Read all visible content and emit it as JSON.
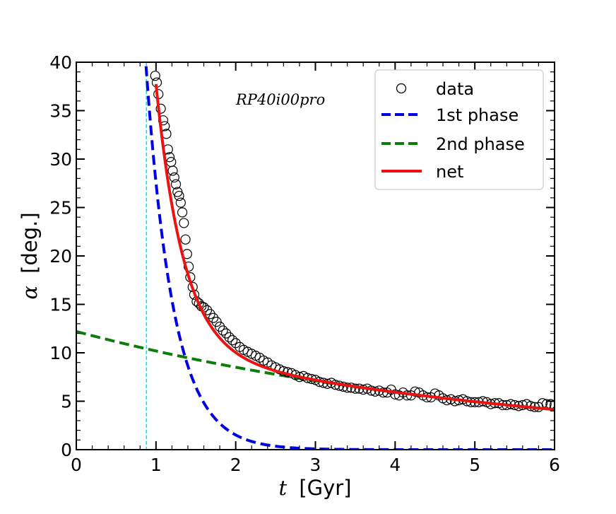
{
  "chart_data": {
    "type": "line",
    "annotation": "RP40i00pro",
    "xlabel": {
      "symbol": "t",
      "text": "[Gyr]"
    },
    "ylabel": {
      "symbol": "α",
      "text": "[deg.]"
    },
    "xlim": [
      0,
      6
    ],
    "ylim": [
      0,
      40
    ],
    "xticks": [
      0,
      1,
      2,
      3,
      4,
      5,
      6
    ],
    "yticks": [
      0,
      5,
      10,
      15,
      20,
      25,
      30,
      35,
      40
    ],
    "grid": false,
    "legend_position": "top-right",
    "vertical_line": {
      "x": 0.88,
      "color": "#00e5ee",
      "style": "dashed"
    },
    "series": [
      {
        "name": "data",
        "style": "open-circle",
        "color": "#000000",
        "points": [
          [
            0.99,
            38.6
          ],
          [
            1.01,
            37.9
          ],
          [
            1.03,
            36.7
          ],
          [
            1.06,
            35.2
          ],
          [
            1.09,
            34.0
          ],
          [
            1.11,
            33.4
          ],
          [
            1.13,
            32.6
          ],
          [
            1.15,
            31.0
          ],
          [
            1.17,
            30.2
          ],
          [
            1.19,
            29.7
          ],
          [
            1.21,
            28.8
          ],
          [
            1.23,
            28.1
          ],
          [
            1.25,
            27.4
          ],
          [
            1.27,
            26.6
          ],
          [
            1.29,
            26.2
          ],
          [
            1.31,
            25.5
          ],
          [
            1.33,
            24.5
          ],
          [
            1.35,
            23.4
          ],
          [
            1.37,
            21.7
          ],
          [
            1.39,
            20.2
          ],
          [
            1.41,
            18.9
          ],
          [
            1.43,
            17.8
          ],
          [
            1.46,
            16.8
          ],
          [
            1.48,
            16.0
          ],
          [
            1.51,
            15.3
          ],
          [
            1.54,
            15.1
          ],
          [
            1.57,
            14.8
          ],
          [
            1.6,
            14.7
          ],
          [
            1.64,
            14.4
          ],
          [
            1.68,
            14.0
          ],
          [
            1.72,
            13.6
          ],
          [
            1.76,
            13.2
          ],
          [
            1.8,
            12.7
          ],
          [
            1.84,
            12.3
          ],
          [
            1.88,
            12.0
          ],
          [
            1.92,
            11.6
          ],
          [
            1.96,
            11.3
          ],
          [
            2.0,
            11.0
          ],
          [
            2.05,
            10.6
          ],
          [
            2.1,
            10.3
          ],
          [
            2.15,
            10.1
          ],
          [
            2.2,
            9.9
          ],
          [
            2.25,
            9.7
          ],
          [
            2.3,
            9.5
          ],
          [
            2.35,
            9.2
          ],
          [
            2.4,
            9.0
          ],
          [
            2.45,
            8.7
          ],
          [
            2.5,
            8.5
          ],
          [
            2.55,
            8.3
          ],
          [
            2.6,
            8.1
          ],
          [
            2.65,
            8.0
          ],
          [
            2.7,
            7.9
          ],
          [
            2.75,
            7.7
          ],
          [
            2.8,
            7.5
          ],
          [
            2.85,
            7.6
          ],
          [
            2.9,
            7.4
          ],
          [
            2.95,
            7.3
          ],
          [
            3.0,
            7.2
          ],
          [
            3.05,
            7.0
          ],
          [
            3.1,
            6.9
          ],
          [
            3.15,
            6.8
          ],
          [
            3.2,
            6.9
          ],
          [
            3.25,
            6.7
          ],
          [
            3.3,
            6.6
          ],
          [
            3.35,
            6.5
          ],
          [
            3.4,
            6.4
          ],
          [
            3.45,
            6.4
          ],
          [
            3.5,
            6.3
          ],
          [
            3.55,
            6.3
          ],
          [
            3.6,
            6.2
          ],
          [
            3.65,
            6.3
          ],
          [
            3.7,
            6.1
          ],
          [
            3.75,
            6.0
          ],
          [
            3.8,
            6.1
          ],
          [
            3.85,
            5.9
          ],
          [
            3.9,
            5.9
          ],
          [
            3.95,
            6.2
          ],
          [
            4.0,
            5.7
          ],
          [
            4.05,
            5.6
          ],
          [
            4.1,
            5.9
          ],
          [
            4.15,
            5.6
          ],
          [
            4.2,
            5.6
          ],
          [
            4.25,
            6.0
          ],
          [
            4.3,
            5.9
          ],
          [
            4.35,
            5.6
          ],
          [
            4.4,
            5.4
          ],
          [
            4.45,
            5.4
          ],
          [
            4.5,
            5.8
          ],
          [
            4.55,
            5.6
          ],
          [
            4.6,
            5.3
          ],
          [
            4.65,
            5.1
          ],
          [
            4.7,
            5.2
          ],
          [
            4.75,
            5.0
          ],
          [
            4.8,
            5.1
          ],
          [
            4.85,
            5.2
          ],
          [
            4.9,
            5.0
          ],
          [
            4.95,
            4.9
          ],
          [
            5.0,
            4.9
          ],
          [
            5.05,
            4.9
          ],
          [
            5.1,
            5.0
          ],
          [
            5.15,
            4.9
          ],
          [
            5.2,
            4.7
          ],
          [
            5.25,
            4.8
          ],
          [
            5.3,
            4.8
          ],
          [
            5.35,
            4.6
          ],
          [
            5.4,
            4.6
          ],
          [
            5.45,
            4.7
          ],
          [
            5.5,
            4.6
          ],
          [
            5.55,
            4.5
          ],
          [
            5.6,
            4.6
          ],
          [
            5.65,
            4.7
          ],
          [
            5.7,
            4.5
          ],
          [
            5.75,
            4.4
          ],
          [
            5.8,
            4.4
          ],
          [
            5.85,
            4.8
          ],
          [
            5.9,
            4.7
          ],
          [
            5.95,
            4.7
          ],
          [
            6.0,
            4.6
          ]
        ]
      },
      {
        "name": "1st phase",
        "style": "dashed",
        "color": "#0000e6",
        "model": {
          "form": "A*exp(-t/tau)",
          "A": 500,
          "tau": 0.345
        }
      },
      {
        "name": "2nd phase",
        "style": "dashed",
        "color": "#0a7d0a",
        "model": {
          "form": "A*exp(-t/tau)",
          "A": 12.2,
          "tau": 5.55
        }
      },
      {
        "name": "net",
        "style": "solid",
        "color": "#ee1111",
        "model": {
          "form": "sum of 1st phase and 2nd phase",
          "t_start": 1.0
        }
      }
    ]
  }
}
